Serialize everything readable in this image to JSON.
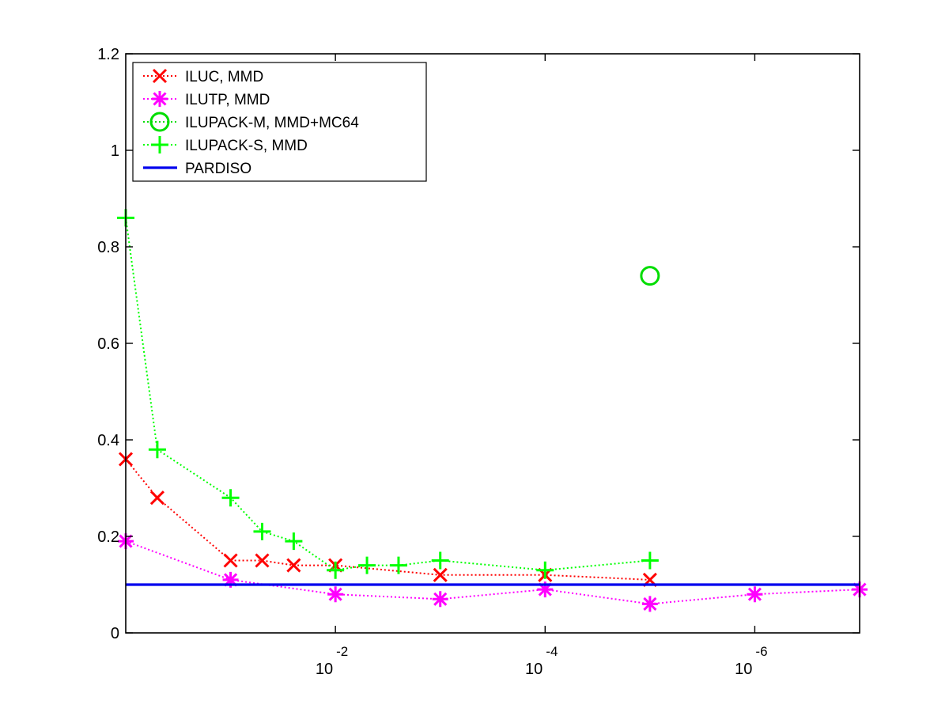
{
  "chart_data": {
    "type": "line",
    "title": "",
    "xlabel": "",
    "ylabel": "",
    "x_scale": "log-reversed",
    "xlim": [
      1,
      1e-07
    ],
    "ylim": [
      0,
      1.2
    ],
    "yticks": [
      {
        "value": 0,
        "label": "0"
      },
      {
        "value": 0.2,
        "label": "0.2"
      },
      {
        "value": 0.4,
        "label": "0.4"
      },
      {
        "value": 0.6,
        "label": "0.6"
      },
      {
        "value": 0.8,
        "label": "0.8"
      },
      {
        "value": 1.0,
        "label": "1"
      },
      {
        "value": 1.2,
        "label": "1.2"
      }
    ],
    "xticks": [
      {
        "value": 0.01,
        "base": "10",
        "exponent": "-2"
      },
      {
        "value": 0.0001,
        "base": "10",
        "exponent": "-4"
      },
      {
        "value": 1e-06,
        "base": "10",
        "exponent": "-6"
      }
    ],
    "grid": false,
    "legend_position": "top-left",
    "series": [
      {
        "name": "ILUC, MMD",
        "color": "#ff0000",
        "marker": "x",
        "line": "dotted",
        "points": [
          {
            "x": 1.0,
            "y": 0.36
          },
          {
            "x": 0.5,
            "y": 0.28
          },
          {
            "x": 0.1,
            "y": 0.15
          },
          {
            "x": 0.05,
            "y": 0.15
          },
          {
            "x": 0.025,
            "y": 0.14
          },
          {
            "x": 0.01,
            "y": 0.14
          },
          {
            "x": 0.001,
            "y": 0.12
          },
          {
            "x": 0.0001,
            "y": 0.12
          },
          {
            "x": 1e-05,
            "y": 0.11
          }
        ]
      },
      {
        "name": "ILUTP, MMD",
        "color": "#ff00ff",
        "marker": "asterisk",
        "line": "dotted",
        "points": [
          {
            "x": 1.0,
            "y": 0.19
          },
          {
            "x": 0.1,
            "y": 0.11
          },
          {
            "x": 0.01,
            "y": 0.08
          },
          {
            "x": 0.001,
            "y": 0.07
          },
          {
            "x": 0.0001,
            "y": 0.09
          },
          {
            "x": 1e-05,
            "y": 0.06
          },
          {
            "x": 1e-06,
            "y": 0.08
          },
          {
            "x": 1e-07,
            "y": 0.09
          }
        ]
      },
      {
        "name": "ILUPACK-M, MMD+MC64",
        "color": "#00dd00",
        "marker": "circle",
        "line": "dotted",
        "points": [
          {
            "x": 1e-05,
            "y": 0.74
          }
        ]
      },
      {
        "name": "ILUPACK-S, MMD",
        "color": "#00ff00",
        "marker": "plus",
        "line": "dotted",
        "points": [
          {
            "x": 1.0,
            "y": 0.86
          },
          {
            "x": 0.5,
            "y": 0.38
          },
          {
            "x": 0.1,
            "y": 0.28
          },
          {
            "x": 0.05,
            "y": 0.21
          },
          {
            "x": 0.025,
            "y": 0.19
          },
          {
            "x": 0.01,
            "y": 0.13
          },
          {
            "x": 0.005,
            "y": 0.14
          },
          {
            "x": 0.0025,
            "y": 0.14
          },
          {
            "x": 0.001,
            "y": 0.15
          },
          {
            "x": 0.0001,
            "y": 0.13
          },
          {
            "x": 1e-05,
            "y": 0.15
          }
        ]
      },
      {
        "name": "PARDISO",
        "color": "#0000ee",
        "marker": "none",
        "line": "solid",
        "points": [
          {
            "x": 1.0,
            "y": 0.1
          },
          {
            "x": 1e-07,
            "y": 0.1
          }
        ]
      }
    ]
  }
}
